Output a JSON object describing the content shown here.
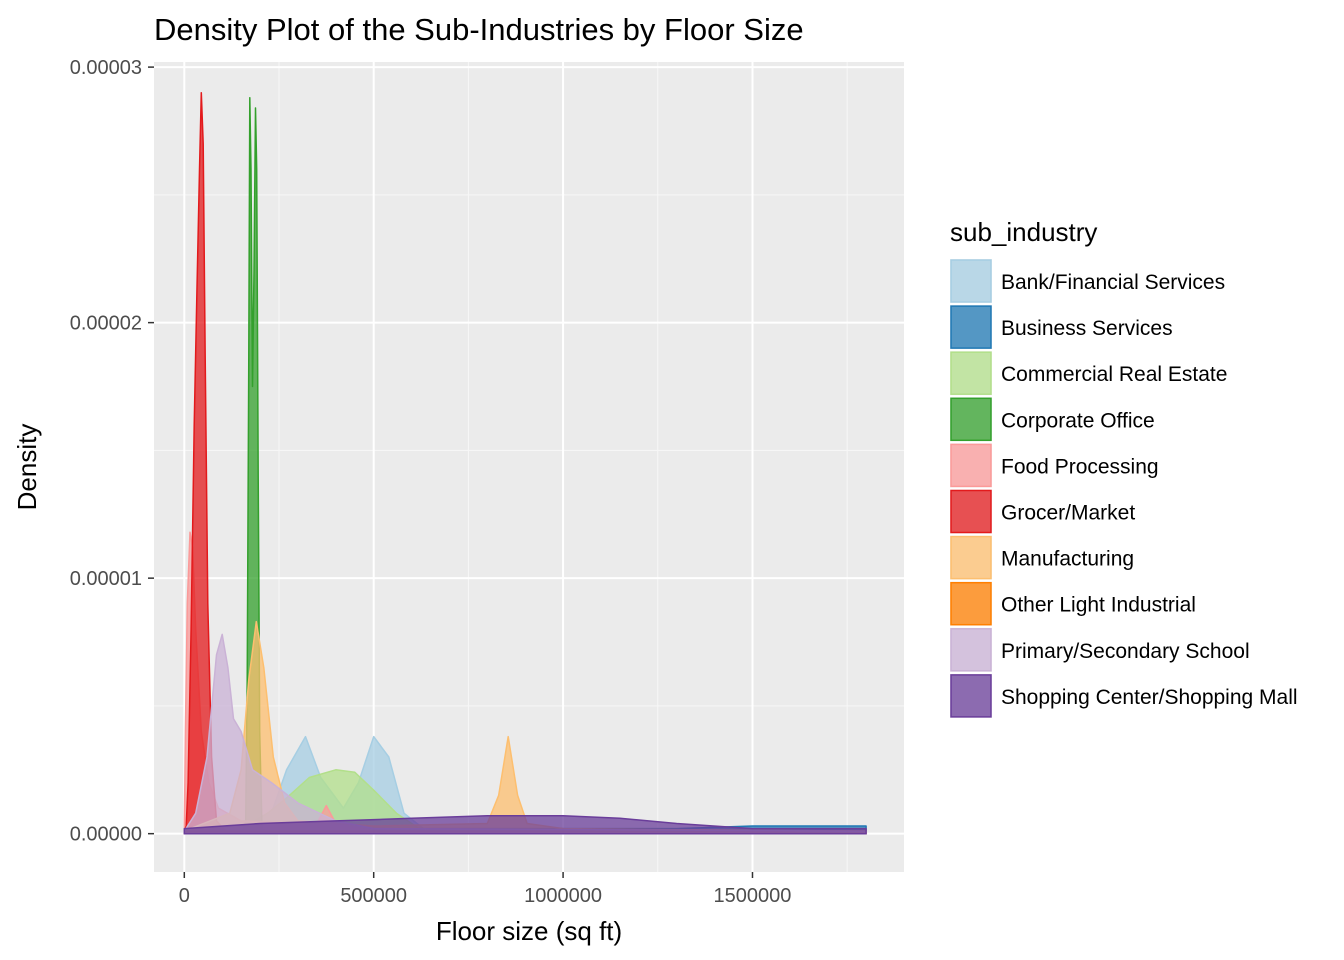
{
  "chart_data": {
    "type": "area",
    "title": "Density Plot of the Sub-Industries by Floor Size",
    "xlabel": "Floor size (sq ft)",
    "ylabel": "Density",
    "xlim": [
      -80000,
      1900000
    ],
    "ylim": [
      -1.5e-06,
      3.02e-05
    ],
    "x_ticks": [
      0,
      500000,
      1000000,
      1500000
    ],
    "x_tick_labels": [
      "0",
      "500000",
      "1000000",
      "1500000"
    ],
    "y_ticks": [
      0,
      1e-05,
      2e-05,
      3e-05
    ],
    "y_tick_labels": [
      "0.00000",
      "0.00001",
      "0.00002",
      "0.00003"
    ],
    "grid": true,
    "legend": {
      "title": "sub_industry",
      "position": "right"
    },
    "series": [
      {
        "name": "Bank/Financial Services",
        "fill": "#A6CEE3",
        "stroke": "#A6CEE3",
        "points": [
          [
            0,
            1e-07
          ],
          [
            150000,
            2e-07
          ],
          [
            230000,
            8e-07
          ],
          [
            270000,
            2.5e-06
          ],
          [
            320000,
            3.8e-06
          ],
          [
            360000,
            2.2e-06
          ],
          [
            420000,
            1e-06
          ],
          [
            460000,
            2e-06
          ],
          [
            500000,
            3.8e-06
          ],
          [
            540000,
            3e-06
          ],
          [
            580000,
            8e-07
          ],
          [
            640000,
            1e-07
          ],
          [
            900000,
            1e-07
          ],
          [
            1800000,
            1e-07
          ]
        ]
      },
      {
        "name": "Business Services",
        "fill": "#1F78B4",
        "stroke": "#1F78B4",
        "points": [
          [
            0,
            1e-07
          ],
          [
            500000,
            2e-07
          ],
          [
            1000000,
            2e-07
          ],
          [
            1300000,
            2e-07
          ],
          [
            1500000,
            3e-07
          ],
          [
            1800000,
            3e-07
          ]
        ]
      },
      {
        "name": "Commercial Real Estate",
        "fill": "#B2DF8A",
        "stroke": "#B2DF8A",
        "points": [
          [
            0,
            1e-07
          ],
          [
            150000,
            2e-07
          ],
          [
            220000,
            8e-07
          ],
          [
            270000,
            1.4e-06
          ],
          [
            330000,
            2.2e-06
          ],
          [
            400000,
            2.5e-06
          ],
          [
            450000,
            2.4e-06
          ],
          [
            500000,
            1.7e-06
          ],
          [
            560000,
            8e-07
          ],
          [
            620000,
            2e-07
          ],
          [
            700000,
            1e-07
          ],
          [
            1800000,
            1e-07
          ]
        ]
      },
      {
        "name": "Corporate Office",
        "fill": "#33A02C",
        "stroke": "#33A02C",
        "points": [
          [
            155000,
            1e-07
          ],
          [
            162000,
            5e-07
          ],
          [
            166000,
            6e-06
          ],
          [
            170000,
            1.8e-05
          ],
          [
            173000,
            2.88e-05
          ],
          [
            176000,
            2.6e-05
          ],
          [
            180000,
            1.75e-05
          ],
          [
            184000,
            2.2e-05
          ],
          [
            188000,
            2.84e-05
          ],
          [
            191000,
            2.6e-05
          ],
          [
            195000,
            1.4e-05
          ],
          [
            199000,
            4e-06
          ],
          [
            205000,
            2e-07
          ],
          [
            215000,
            1e-07
          ]
        ]
      },
      {
        "name": "Food Processing",
        "fill": "#FB9A99",
        "stroke": "#FB9A99",
        "points": [
          [
            0,
            1e-07
          ],
          [
            3000,
            4e-06
          ],
          [
            8000,
            9e-06
          ],
          [
            15000,
            1.18e-05
          ],
          [
            22000,
            1.12e-05
          ],
          [
            30000,
            8e-06
          ],
          [
            45000,
            4e-06
          ],
          [
            65000,
            2e-06
          ],
          [
            90000,
            1e-06
          ],
          [
            150000,
            5e-07
          ],
          [
            350000,
            4e-07
          ],
          [
            375000,
            1.1e-06
          ],
          [
            400000,
            4e-07
          ],
          [
            500000,
            1e-07
          ],
          [
            1800000,
            1e-07
          ]
        ]
      },
      {
        "name": "Grocer/Market",
        "fill": "#E31A1C",
        "stroke": "#E31A1C",
        "points": [
          [
            0,
            1e-07
          ],
          [
            5000,
            3e-07
          ],
          [
            10000,
            2e-06
          ],
          [
            18000,
            8e-06
          ],
          [
            26000,
            1.6e-05
          ],
          [
            33000,
            2.1e-05
          ],
          [
            40000,
            2.6e-05
          ],
          [
            45000,
            2.9e-05
          ],
          [
            50000,
            2.7e-05
          ],
          [
            55000,
            1.9e-05
          ],
          [
            62000,
            9e-06
          ],
          [
            72000,
            3e-06
          ],
          [
            85000,
            5e-07
          ],
          [
            110000,
            1e-07
          ],
          [
            1800000,
            1e-07
          ]
        ]
      },
      {
        "name": "Manufacturing",
        "fill": "#FDBF6F",
        "stroke": "#FDBF6F",
        "points": [
          [
            0,
            1e-07
          ],
          [
            120000,
            8e-07
          ],
          [
            150000,
            2.5e-06
          ],
          [
            170000,
            6e-06
          ],
          [
            190000,
            8.3e-06
          ],
          [
            210000,
            6.5e-06
          ],
          [
            235000,
            3e-06
          ],
          [
            265000,
            1.2e-06
          ],
          [
            300000,
            5e-07
          ],
          [
            500000,
            3e-07
          ],
          [
            800000,
            4e-07
          ],
          [
            830000,
            1.5e-06
          ],
          [
            855000,
            3.8e-06
          ],
          [
            880000,
            1.5e-06
          ],
          [
            905000,
            4e-07
          ],
          [
            1000000,
            2e-07
          ],
          [
            1800000,
            1e-07
          ]
        ]
      },
      {
        "name": "Other Light Industrial",
        "fill": "#FF7F00",
        "stroke": "#FF7F00",
        "points": [
          [
            0,
            1e-07
          ],
          [
            1800000,
            1e-07
          ]
        ]
      },
      {
        "name": "Primary/Secondary School",
        "fill": "#CAB2D6",
        "stroke": "#CAB2D6",
        "points": [
          [
            0,
            1e-07
          ],
          [
            30000,
            8e-07
          ],
          [
            60000,
            3e-06
          ],
          [
            85000,
            7e-06
          ],
          [
            100000,
            7.8e-06
          ],
          [
            115000,
            6.5e-06
          ],
          [
            130000,
            4.5e-06
          ],
          [
            150000,
            4e-06
          ],
          [
            180000,
            2.5e-06
          ],
          [
            230000,
            2e-06
          ],
          [
            300000,
            1.2e-06
          ],
          [
            400000,
            5e-07
          ],
          [
            500000,
            2e-07
          ],
          [
            1800000,
            1e-07
          ]
        ]
      },
      {
        "name": "Shopping Center/Shopping Mall",
        "fill": "#6A3D9A",
        "stroke": "#6A3D9A",
        "points": [
          [
            0,
            2e-07
          ],
          [
            200000,
            4e-07
          ],
          [
            400000,
            5e-07
          ],
          [
            600000,
            6e-07
          ],
          [
            800000,
            7e-07
          ],
          [
            1000000,
            7e-07
          ],
          [
            1150000,
            6e-07
          ],
          [
            1300000,
            4e-07
          ],
          [
            1500000,
            2e-07
          ],
          [
            1650000,
            2e-07
          ],
          [
            1800000,
            2e-07
          ]
        ]
      }
    ]
  }
}
